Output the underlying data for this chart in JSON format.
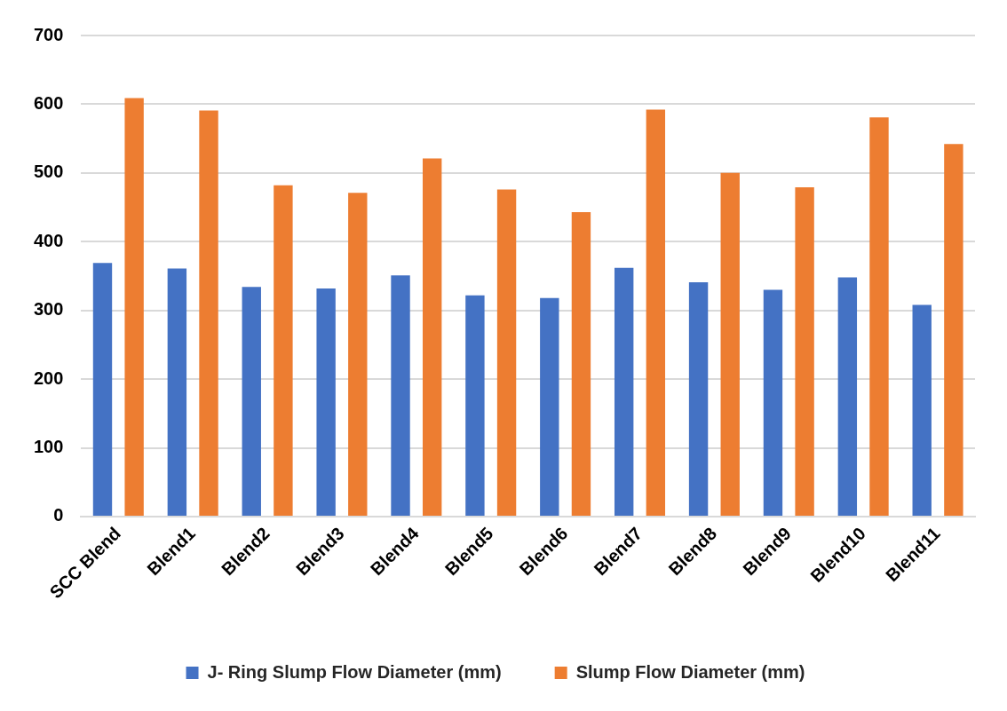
{
  "chart_data": {
    "type": "bar",
    "categories": [
      "SCC Blend",
      "Blend1",
      "Blend2",
      "Blend3",
      "Blend4",
      "Blend5",
      "Blend6",
      "Blend7",
      "Blend8",
      "Blend9",
      "Blend10",
      "Blend11"
    ],
    "series": [
      {
        "name": "J- Ring Slump Flow Diameter (mm)",
        "color": "#4472c4",
        "values": [
          369,
          361,
          334,
          332,
          351,
          322,
          318,
          362,
          341,
          330,
          348,
          308
        ]
      },
      {
        "name": "Slump Flow Diameter (mm)",
        "color": "#ed7d31",
        "values": [
          609,
          591,
          482,
          471,
          521,
          476,
          443,
          592,
          500,
          479,
          581,
          542
        ]
      }
    ],
    "ylim": [
      0,
      700
    ],
    "yticks": [
      0,
      100,
      200,
      300,
      400,
      500,
      600,
      700
    ],
    "grid": "y",
    "legend": "bottom"
  }
}
